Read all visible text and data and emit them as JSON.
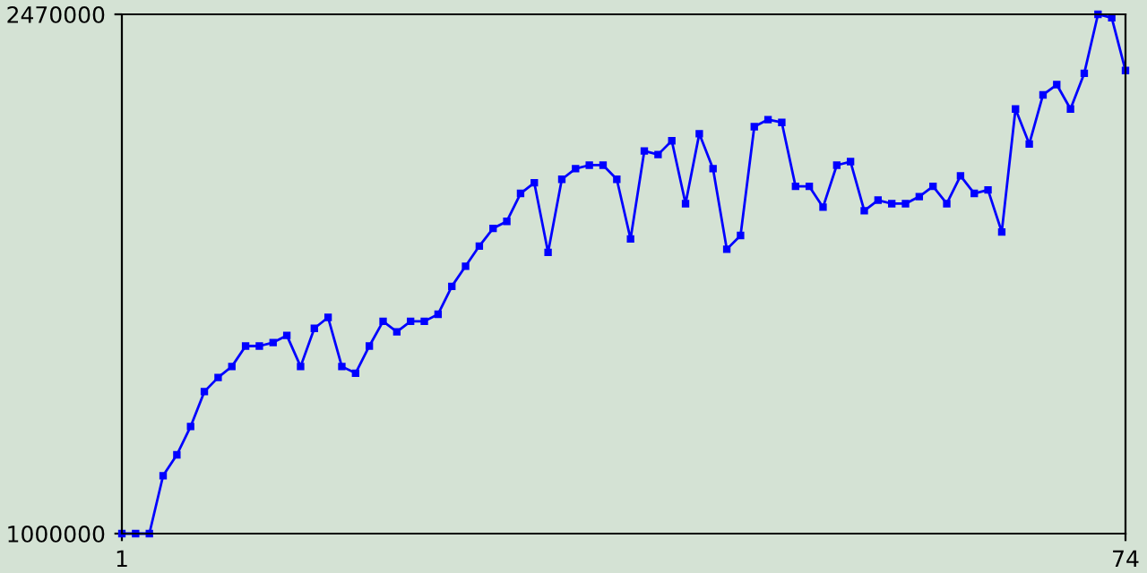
{
  "chart_data": {
    "type": "line",
    "x": [
      1,
      2,
      3,
      4,
      5,
      6,
      7,
      8,
      9,
      10,
      11,
      12,
      13,
      14,
      15,
      16,
      17,
      18,
      19,
      20,
      21,
      22,
      23,
      24,
      25,
      26,
      27,
      28,
      29,
      30,
      31,
      32,
      33,
      34,
      35,
      36,
      37,
      38,
      39,
      40,
      41,
      42,
      43,
      44,
      45,
      46,
      47,
      48,
      49,
      50,
      51,
      52,
      53,
      54,
      55,
      56,
      57,
      58,
      59,
      60,
      61,
      62,
      63,
      64,
      65,
      66,
      67,
      68,
      69,
      70,
      71,
      72,
      73,
      74
    ],
    "series": [
      {
        "color": "#0000ff",
        "values": [
          1000000,
          1000000,
          1000000,
          1164000,
          1223000,
          1303000,
          1402000,
          1442000,
          1473000,
          1531000,
          1531000,
          1541000,
          1561000,
          1473000,
          1581000,
          1612000,
          1473000,
          1454000,
          1531000,
          1601000,
          1571000,
          1601000,
          1601000,
          1621000,
          1700000,
          1757000,
          1814000,
          1864000,
          1884000,
          1963000,
          1993000,
          1796000,
          2003000,
          2033000,
          2043000,
          2043000,
          2003000,
          1834000,
          2083000,
          2073000,
          2112000,
          1934000,
          2132000,
          2033000,
          1805000,
          1844000,
          2152000,
          2172000,
          2164000,
          1983000,
          1983000,
          1924000,
          2043000,
          2053000,
          1914000,
          1944000,
          1934000,
          1934000,
          1954000,
          1983000,
          1934000,
          2013000,
          1963000,
          1973000,
          1854000,
          2202000,
          2103000,
          2242000,
          2271000,
          2202000,
          2303000,
          2470000,
          2460000,
          2311000
        ]
      }
    ],
    "xlim": [
      1,
      74
    ],
    "ylim": [
      1000000,
      2470000
    ],
    "xticks": [
      1,
      74
    ],
    "yticks": [
      1000000,
      2470000
    ],
    "grid": false,
    "marker": "square",
    "line_style": "solid"
  }
}
